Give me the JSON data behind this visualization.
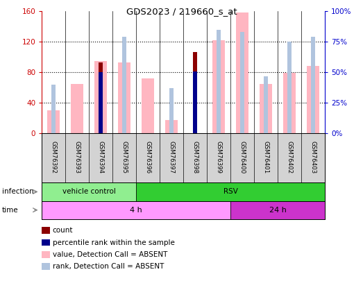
{
  "title": "GDS2023 / 219660_s_at",
  "samples": [
    "GSM76392",
    "GSM76393",
    "GSM76394",
    "GSM76395",
    "GSM76396",
    "GSM76397",
    "GSM76398",
    "GSM76399",
    "GSM76400",
    "GSM76401",
    "GSM76402",
    "GSM76403"
  ],
  "count_values": [
    null,
    null,
    93,
    null,
    null,
    null,
    107,
    null,
    null,
    null,
    null,
    null
  ],
  "rank_values": [
    null,
    null,
    50,
    null,
    null,
    null,
    51,
    null,
    null,
    null,
    null,
    null
  ],
  "absent_value_bars": [
    30,
    65,
    95,
    93,
    72,
    18,
    null,
    122,
    158,
    65,
    79,
    88
  ],
  "absent_rank_bars": [
    40,
    null,
    null,
    79,
    null,
    37,
    null,
    85,
    83,
    47,
    75,
    79
  ],
  "ylim_left": [
    0,
    160
  ],
  "ylim_right": [
    0,
    100
  ],
  "yticks_left": [
    0,
    40,
    80,
    120,
    160
  ],
  "yticks_right": [
    0,
    25,
    50,
    75,
    100
  ],
  "yticklabels_left": [
    "0",
    "40",
    "80",
    "120",
    "160"
  ],
  "yticklabels_right": [
    "0%",
    "25%",
    "50%",
    "75%",
    "100%"
  ],
  "infection_groups": [
    {
      "label": "vehicle control",
      "start": 0,
      "end": 4,
      "color": "#90ee90"
    },
    {
      "label": "RSV",
      "start": 4,
      "end": 12,
      "color": "#32cd32"
    }
  ],
  "time_groups": [
    {
      "label": "4 h",
      "start": 0,
      "end": 8,
      "color": "#ff99ff"
    },
    {
      "label": "24 h",
      "start": 8,
      "end": 12,
      "color": "#cc33cc"
    }
  ],
  "legend_items": [
    {
      "color": "#8b0000",
      "label": "count"
    },
    {
      "color": "#00008b",
      "label": "percentile rank within the sample"
    },
    {
      "color": "#ffb6c1",
      "label": "value, Detection Call = ABSENT"
    },
    {
      "color": "#b0c4de",
      "label": "rank, Detection Call = ABSENT"
    }
  ],
  "count_color": "#8b0000",
  "rank_color": "#00008b",
  "absent_value_color": "#ffb6c1",
  "absent_rank_color": "#b0c4de",
  "left_tick_color": "#cc0000",
  "right_tick_color": "#0000cc",
  "bg_color": "#ffffff",
  "plot_bg_color": "#ffffff",
  "sample_bg_color": "#d3d3d3"
}
